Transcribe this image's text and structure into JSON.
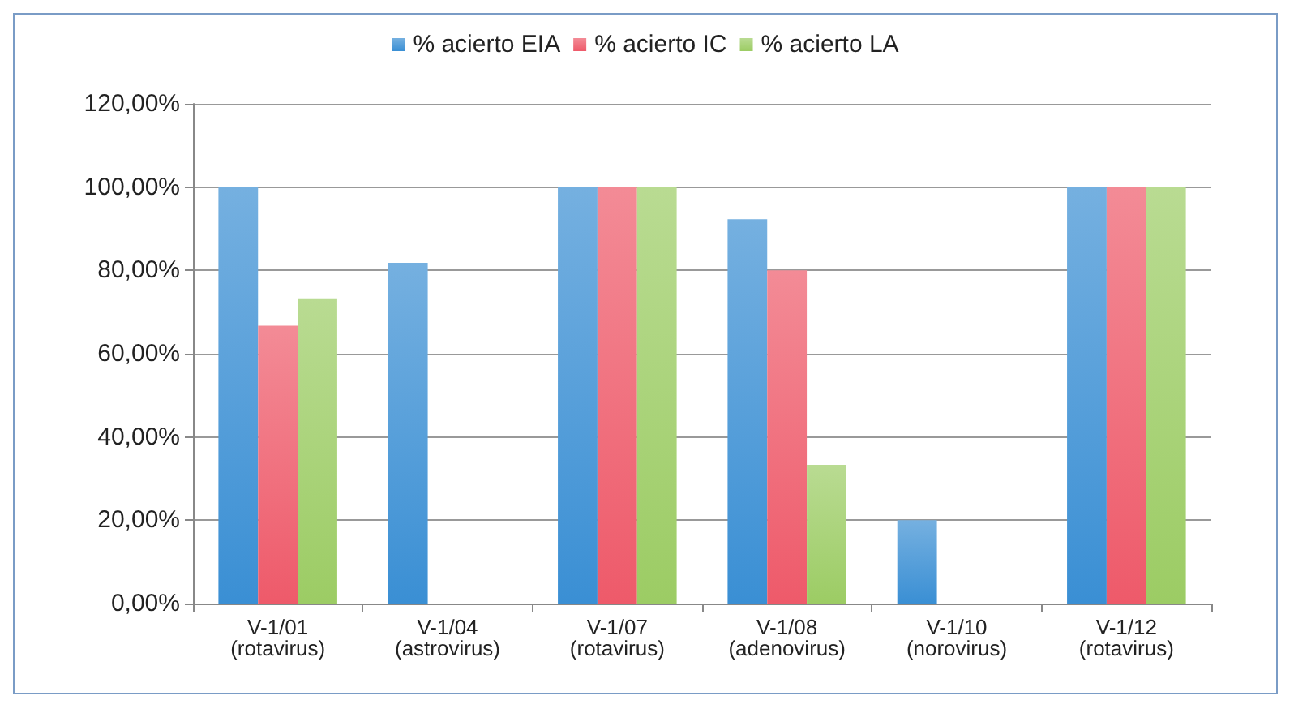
{
  "chart_data": {
    "type": "bar",
    "categories": [
      "V-1/01\n(rotavirus)",
      "V-1/04\n(astrovirus)",
      "V-1/07\n(rotavirus)",
      "V-1/08\n(adenovirus)",
      "V-1/10\n(norovirus)",
      "V-1/12\n(rotavirus)"
    ],
    "series": [
      {
        "name": "% acierto EIA",
        "color": "#3a8fd4",
        "values": [
          100,
          81.8,
          100,
          92.3,
          20,
          100
        ]
      },
      {
        "name": "% acierto IC",
        "color": "#ee5a6a",
        "values": [
          66.7,
          0,
          100,
          80,
          0,
          100
        ]
      },
      {
        "name": "% acierto LA",
        "color": "#9ccc64",
        "values": [
          73.3,
          0,
          100,
          33.3,
          0,
          100
        ]
      }
    ],
    "ylim": [
      0,
      120
    ],
    "yticks": [
      {
        "value": 0,
        "label": "0,00%"
      },
      {
        "value": 20,
        "label": "20,00%"
      },
      {
        "value": 40,
        "label": "40,00%"
      },
      {
        "value": 60,
        "label": "60,00%"
      },
      {
        "value": 80,
        "label": "80,00%"
      },
      {
        "value": 100,
        "label": "100,00%"
      },
      {
        "value": 120,
        "label": "120,00%"
      }
    ],
    "grid": "y",
    "legend": "top"
  }
}
